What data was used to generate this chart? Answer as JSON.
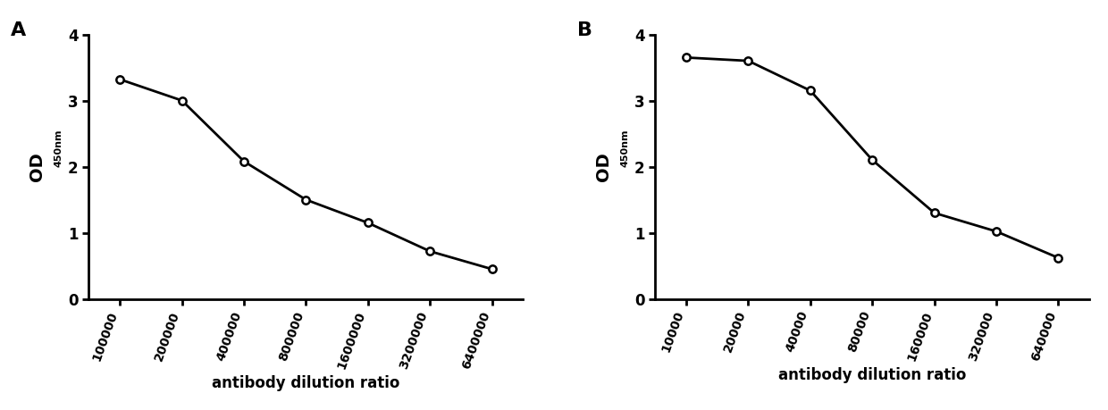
{
  "panel_A": {
    "label": "A",
    "x_labels": [
      "100000",
      "200000",
      "400000",
      "800000",
      "1600000",
      "3200000",
      "6400000"
    ],
    "y_values": [
      3.32,
      3.0,
      2.08,
      1.5,
      1.15,
      0.72,
      0.45
    ],
    "ylim": [
      0,
      4
    ],
    "yticks": [
      0,
      1,
      2,
      3,
      4
    ],
    "xlabel": "antibody dilution ratio"
  },
  "panel_B": {
    "label": "B",
    "x_labels": [
      "10000",
      "20000",
      "40000",
      "80000",
      "160000",
      "320000",
      "640000"
    ],
    "y_values": [
      3.65,
      3.6,
      3.15,
      2.1,
      1.3,
      1.02,
      0.62
    ],
    "ylim": [
      0,
      4
    ],
    "yticks": [
      0,
      1,
      2,
      3,
      4
    ],
    "xlabel": "antibody dilution ratio"
  },
  "line_color": "#000000",
  "marker": "o",
  "marker_facecolor": "#ffffff",
  "marker_edgecolor": "#000000",
  "marker_size": 6,
  "linewidth": 2.0,
  "background_color": "#ffffff",
  "tick_rotation": 70,
  "font_family": "Arial Black",
  "label_fontsize": 14,
  "tick_fontsize": 10,
  "xlabel_fontsize": 12,
  "panel_label_fontsize": 16
}
